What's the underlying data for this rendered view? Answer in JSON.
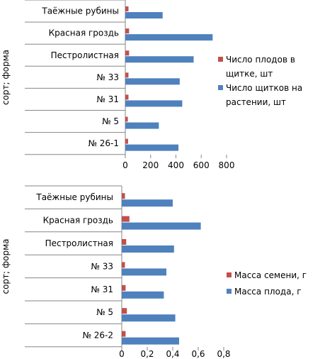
{
  "colors": {
    "series_red": "#c0504d",
    "series_blue": "#4f81bd",
    "axis": "#868686"
  },
  "chart_data": [
    {
      "type": "bar",
      "orientation": "horizontal",
      "ylabel": "сорт; форма",
      "categories": [
        "Таёжные рубины",
        "Красная гроздь",
        "Пестролистная",
        "№ 33",
        "№ 31",
        "№ 5",
        "№ 26-1"
      ],
      "series": [
        {
          "name": "Число плодов в щитке, шт",
          "values": [
            25,
            30,
            30,
            25,
            25,
            20,
            22
          ]
        },
        {
          "name": "Число щитков на растении, шт",
          "values": [
            295,
            690,
            540,
            430,
            450,
            265,
            420
          ]
        }
      ],
      "xticks": [
        "0",
        "200",
        "400",
        "600",
        "800"
      ],
      "xlim": [
        0,
        800
      ],
      "legend": "right"
    },
    {
      "type": "bar",
      "orientation": "horizontal",
      "ylabel": "сорт; форма",
      "categories": [
        "Таёжные рубины",
        "Красная гроздь",
        "Пестролистная",
        "№ 33",
        "№ 31",
        "№ 5",
        "№ 26-2"
      ],
      "series": [
        {
          "name": "Масса семени, г",
          "values": [
            0.025,
            0.06,
            0.035,
            0.025,
            0.03,
            0.04,
            0.03
          ]
        },
        {
          "name": "Масса плода, г",
          "values": [
            0.4,
            0.62,
            0.41,
            0.35,
            0.33,
            0.42,
            0.45
          ]
        }
      ],
      "xticks": [
        "0",
        "0,2",
        "0,4",
        "0,6",
        "0,8"
      ],
      "xlim": [
        0,
        0.8
      ],
      "legend": "right"
    }
  ]
}
